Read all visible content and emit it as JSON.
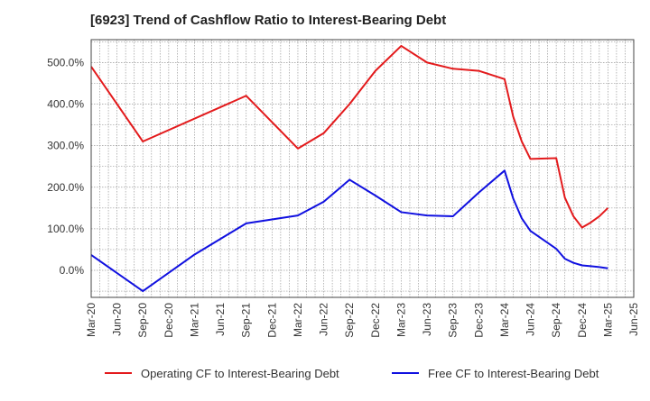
{
  "chart_data": {
    "type": "line",
    "title": "[6923]  Trend of Cashflow Ratio to Interest-Bearing Debt",
    "xlabel": "",
    "ylabel": "",
    "x_ticks": [
      "Mar-20",
      "Jun-20",
      "Sep-20",
      "Dec-20",
      "Mar-21",
      "Jun-21",
      "Sep-21",
      "Dec-21",
      "Mar-22",
      "Jun-22",
      "Sep-22",
      "Dec-22",
      "Mar-23",
      "Jun-23",
      "Sep-23",
      "Dec-23",
      "Mar-24",
      "Jun-24",
      "Sep-24",
      "Dec-24",
      "Mar-25",
      "Jun-25"
    ],
    "y_ticks": [
      0,
      100,
      200,
      300,
      400,
      500
    ],
    "y_tick_labels": [
      "0.0%",
      "100.0%",
      "200.0%",
      "300.0%",
      "400.0%",
      "500.0%"
    ],
    "ylim": [
      -65,
      555
    ],
    "grid": true,
    "legend_position": "bottom",
    "series": [
      {
        "name": "Operating CF to Interest-Bearing Debt",
        "color": "#e31a1c",
        "points": [
          [
            "Mar-20",
            490
          ],
          [
            "Sep-20",
            310
          ],
          [
            "Sep-21",
            420
          ],
          [
            "Mar-22",
            293
          ],
          [
            "Jun-22",
            330
          ],
          [
            "Sep-22",
            400
          ],
          [
            "Dec-22",
            480
          ],
          [
            "Mar-23",
            540
          ],
          [
            "Jun-23",
            500
          ],
          [
            "Sep-23",
            485
          ],
          [
            "Dec-23",
            480
          ],
          [
            "Mar-24",
            460
          ],
          [
            "Apr-24",
            370
          ],
          [
            "May-24",
            310
          ],
          [
            "Jun-24",
            268
          ],
          [
            "Sep-24",
            270
          ],
          [
            "Oct-24",
            175
          ],
          [
            "Nov-24",
            130
          ],
          [
            "Dec-24",
            103
          ],
          [
            "Jan-25",
            115
          ],
          [
            "Feb-25",
            130
          ],
          [
            "Mar-25",
            150
          ]
        ]
      },
      {
        "name": "Free CF to Interest-Bearing Debt",
        "color": "#1010e0",
        "points": [
          [
            "Mar-20",
            37
          ],
          [
            "Sep-20",
            -50
          ],
          [
            "Mar-21",
            38
          ],
          [
            "Sep-21",
            113
          ],
          [
            "Mar-22",
            132
          ],
          [
            "Jun-22",
            165
          ],
          [
            "Sep-22",
            218
          ],
          [
            "Dec-22",
            180
          ],
          [
            "Mar-23",
            140
          ],
          [
            "Jun-23",
            132
          ],
          [
            "Sep-23",
            130
          ],
          [
            "Dec-23",
            187
          ],
          [
            "Mar-24",
            240
          ],
          [
            "Apr-24",
            173
          ],
          [
            "May-24",
            125
          ],
          [
            "Jun-24",
            95
          ],
          [
            "Sep-24",
            52
          ],
          [
            "Oct-24",
            28
          ],
          [
            "Nov-24",
            18
          ],
          [
            "Dec-24",
            12
          ],
          [
            "Jan-25",
            10
          ],
          [
            "Feb-25",
            8
          ],
          [
            "Mar-25",
            5
          ]
        ]
      }
    ]
  }
}
